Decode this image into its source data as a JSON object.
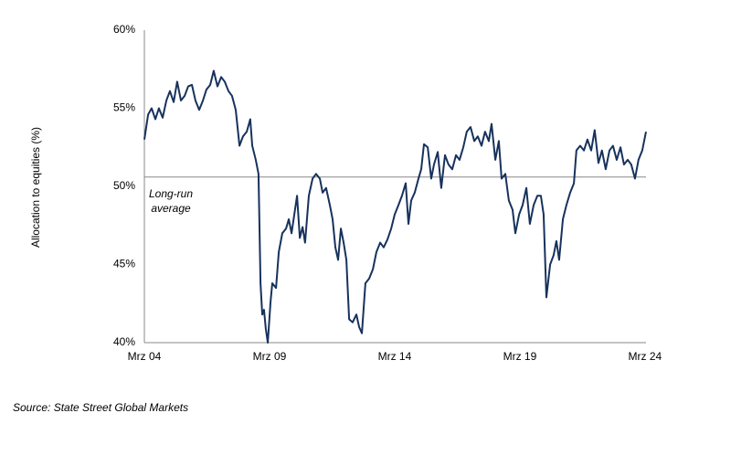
{
  "chart_data": {
    "type": "line",
    "y_label": "Allocation to equities (%)",
    "source": "Source: State Street Global Markets",
    "reference_line": {
      "value": 50.6,
      "label_lines": [
        "Long-run",
        "average"
      ]
    },
    "x": [
      2004.17,
      2004.32,
      2004.46,
      2004.61,
      2004.75,
      2004.9,
      2005.05,
      2005.19,
      2005.34,
      2005.48,
      2005.63,
      2005.78,
      2005.92,
      2006.07,
      2006.21,
      2006.36,
      2006.51,
      2006.65,
      2006.8,
      2006.94,
      2007.09,
      2007.24,
      2007.38,
      2007.53,
      2007.67,
      2007.82,
      2007.97,
      2008.11,
      2008.26,
      2008.4,
      2008.48,
      2008.62,
      2008.73,
      2008.81,
      2008.88,
      2008.95,
      2009.02,
      2009.1,
      2009.21,
      2009.28,
      2009.43,
      2009.54,
      2009.68,
      2009.83,
      2009.94,
      2010.05,
      2010.16,
      2010.27,
      2010.38,
      2010.49,
      2010.59,
      2010.74,
      2010.89,
      2011.03,
      2011.18,
      2011.29,
      2011.43,
      2011.58,
      2011.69,
      2011.8,
      2011.91,
      2012.02,
      2012.13,
      2012.24,
      2012.35,
      2012.49,
      2012.64,
      2012.75,
      2012.86,
      2013.0,
      2013.15,
      2013.3,
      2013.44,
      2013.59,
      2013.73,
      2013.88,
      2014.03,
      2014.17,
      2014.32,
      2014.46,
      2014.61,
      2014.72,
      2014.83,
      2014.97,
      2015.12,
      2015.23,
      2015.34,
      2015.49,
      2015.63,
      2015.74,
      2015.89,
      2016.03,
      2016.18,
      2016.32,
      2016.47,
      2016.62,
      2016.76,
      2016.91,
      2017.05,
      2017.2,
      2017.35,
      2017.49,
      2017.64,
      2017.78,
      2017.93,
      2018.04,
      2018.19,
      2018.33,
      2018.44,
      2018.59,
      2018.73,
      2018.88,
      2018.99,
      2019.14,
      2019.28,
      2019.43,
      2019.57,
      2019.72,
      2019.87,
      2020.01,
      2020.12,
      2020.23,
      2020.38,
      2020.52,
      2020.63,
      2020.74,
      2020.89,
      2021.03,
      2021.18,
      2021.33,
      2021.43,
      2021.58,
      2021.73,
      2021.87,
      2022.02,
      2022.16,
      2022.31,
      2022.45,
      2022.6,
      2022.75,
      2022.89,
      2023.04,
      2023.19,
      2023.33,
      2023.48,
      2023.62,
      2023.77,
      2023.91,
      2024.06,
      2024.21
    ],
    "series": [
      {
        "name": "Allocation to equities",
        "color": "#17325c",
        "values": [
          53.0,
          54.6,
          55.0,
          54.3,
          55.0,
          54.4,
          55.5,
          56.1,
          55.4,
          56.7,
          55.5,
          55.8,
          56.4,
          56.5,
          55.5,
          54.9,
          55.5,
          56.2,
          56.5,
          57.4,
          56.4,
          57.0,
          56.7,
          56.1,
          55.8,
          54.9,
          52.6,
          53.2,
          53.5,
          54.3,
          52.6,
          51.7,
          50.8,
          43.8,
          41.8,
          42.1,
          40.9,
          40.0,
          42.6,
          43.8,
          43.5,
          45.8,
          47.0,
          47.3,
          47.9,
          47.0,
          48.2,
          49.4,
          46.7,
          47.4,
          46.4,
          49.4,
          50.5,
          50.8,
          50.5,
          49.6,
          49.9,
          48.8,
          47.9,
          46.1,
          45.3,
          47.3,
          46.4,
          45.3,
          41.5,
          41.3,
          41.8,
          41.0,
          40.6,
          43.8,
          44.1,
          44.7,
          45.8,
          46.4,
          46.1,
          46.6,
          47.3,
          48.2,
          48.8,
          49.4,
          50.2,
          47.6,
          49.1,
          49.6,
          50.5,
          51.1,
          52.7,
          52.5,
          50.5,
          51.4,
          52.2,
          49.9,
          52.0,
          51.4,
          51.1,
          52.0,
          51.7,
          52.5,
          53.5,
          53.8,
          52.9,
          53.2,
          52.6,
          53.5,
          52.9,
          54.0,
          51.7,
          52.9,
          50.5,
          50.8,
          49.1,
          48.5,
          47.0,
          48.2,
          48.8,
          49.9,
          47.6,
          48.8,
          49.4,
          49.4,
          48.2,
          42.9,
          45.0,
          45.6,
          46.5,
          45.3,
          47.9,
          48.8,
          49.6,
          50.2,
          52.3,
          52.6,
          52.3,
          53.0,
          52.3,
          53.6,
          51.5,
          52.3,
          51.1,
          52.3,
          52.6,
          51.7,
          52.5,
          51.4,
          51.7,
          51.4,
          50.5,
          51.7,
          52.3,
          53.5
        ]
      }
    ],
    "xlim": [
      2004.17,
      2024.21
    ],
    "xticks": [
      {
        "value": 2004.17,
        "label": "Mrz 04"
      },
      {
        "value": 2009.17,
        "label": "Mrz 09"
      },
      {
        "value": 2014.17,
        "label": "Mrz 14"
      },
      {
        "value": 2019.17,
        "label": "Mrz 19"
      },
      {
        "value": 2024.17,
        "label": "Mrz 24"
      }
    ],
    "ylim": [
      40,
      60
    ],
    "yticks": [
      {
        "value": 40,
        "label": "40%"
      },
      {
        "value": 45,
        "label": "45%"
      },
      {
        "value": 50,
        "label": "50%"
      },
      {
        "value": 55,
        "label": "55%"
      },
      {
        "value": 60,
        "label": "60%"
      }
    ],
    "grid": false
  }
}
